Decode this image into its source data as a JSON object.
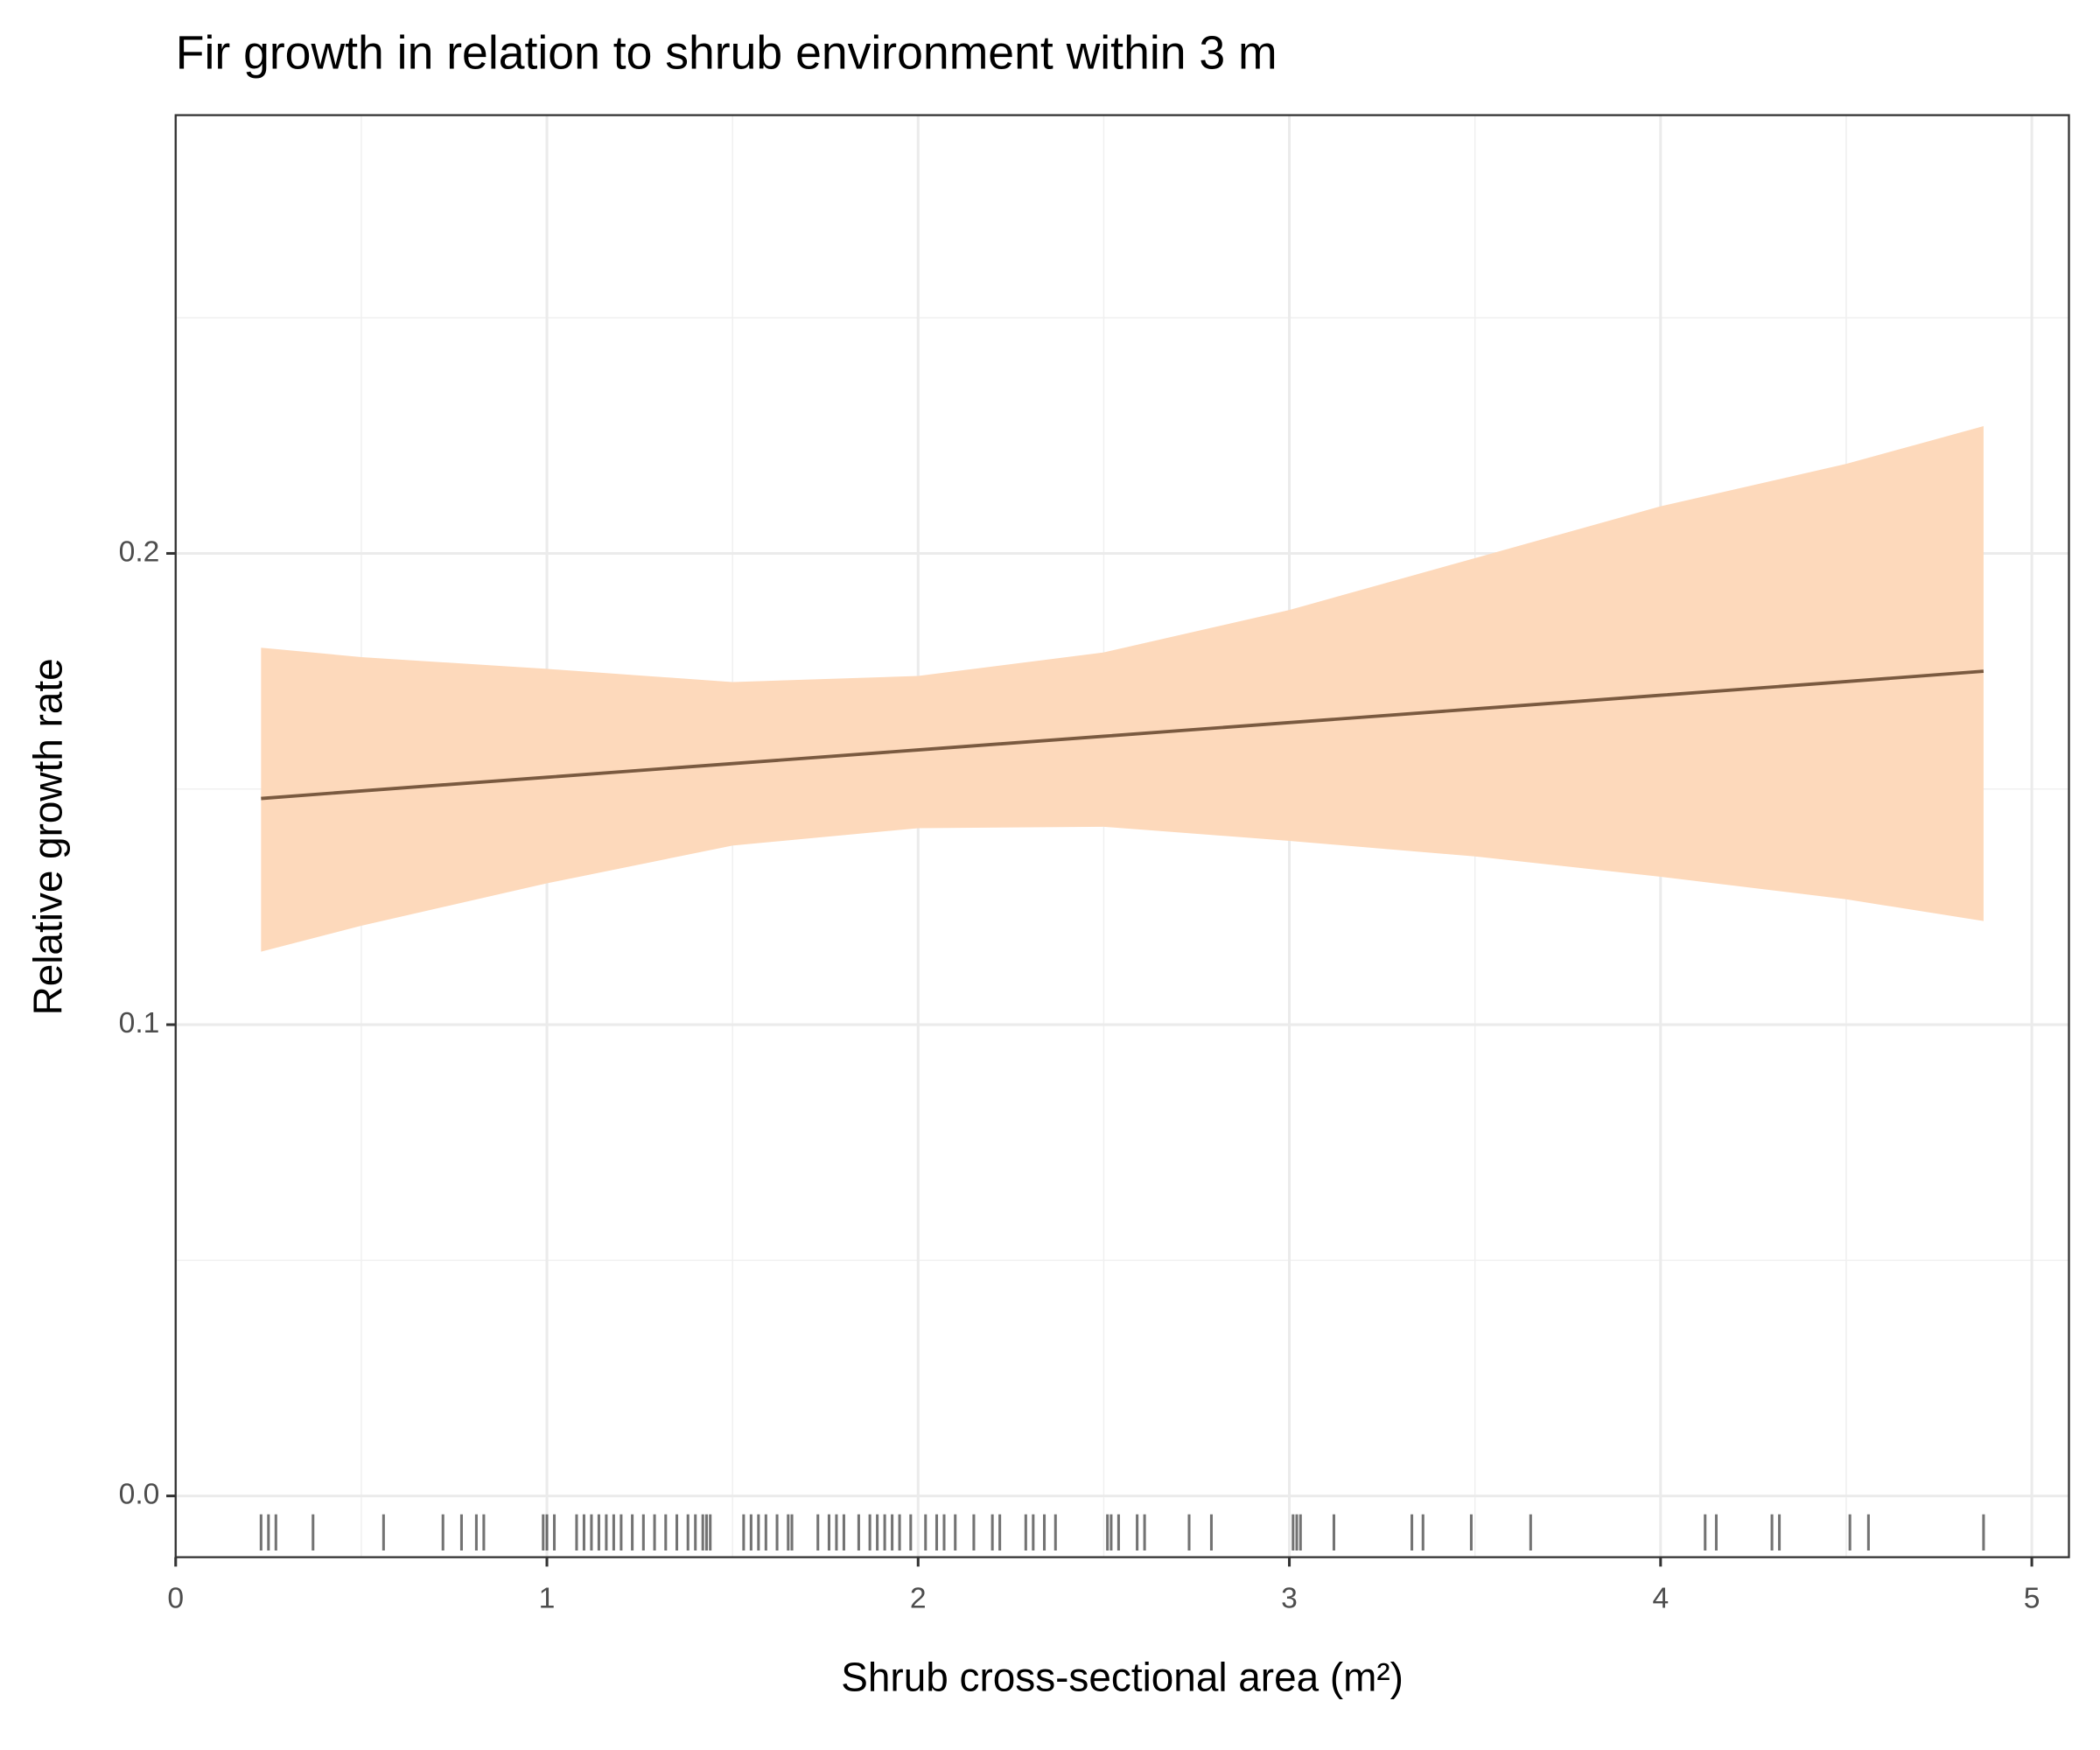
{
  "chart_data": {
    "type": "line",
    "title": "Fir growth in relation to shrub environment within 3 m",
    "xlabel": "Shrub cross-sectional area (m²)",
    "ylabel": "Relative growth rate",
    "x": [
      0.23,
      0.5,
      1,
      1.5,
      2,
      2.5,
      3,
      3.5,
      4,
      4.5,
      4.87
    ],
    "values": [
      0.148,
      0.1496,
      0.1525,
      0.1554,
      0.1583,
      0.1612,
      0.1641,
      0.167,
      0.1699,
      0.1728,
      0.175
    ],
    "upper": [
      0.18,
      0.178,
      0.1755,
      0.1727,
      0.174,
      0.179,
      0.188,
      0.199,
      0.21,
      0.219,
      0.227
    ],
    "lower": [
      0.1155,
      0.121,
      0.13,
      0.138,
      0.1417,
      0.142,
      0.139,
      0.1357,
      0.1314,
      0.1266,
      0.122
    ],
    "line_color": "#7a5a40",
    "ribbon_color": "#fdd9bb",
    "rug": [
      0.23,
      0.25,
      0.27,
      0.37,
      0.56,
      0.72,
      0.77,
      0.81,
      0.83,
      0.99,
      1.0,
      1.02,
      1.08,
      1.1,
      1.12,
      1.14,
      1.16,
      1.18,
      1.2,
      1.23,
      1.26,
      1.29,
      1.32,
      1.35,
      1.38,
      1.4,
      1.42,
      1.43,
      1.44,
      1.53,
      1.55,
      1.57,
      1.59,
      1.62,
      1.65,
      1.66,
      1.73,
      1.76,
      1.78,
      1.8,
      1.84,
      1.87,
      1.89,
      1.91,
      1.93,
      1.95,
      1.98,
      2.02,
      2.05,
      2.07,
      2.1,
      2.15,
      2.2,
      2.22,
      2.29,
      2.31,
      2.34,
      2.37,
      2.51,
      2.52,
      2.54,
      2.59,
      2.61,
      2.73,
      2.79,
      3.01,
      3.02,
      3.03,
      3.12,
      3.33,
      3.36,
      3.49,
      3.65,
      4.12,
      4.15,
      4.3,
      4.32,
      4.51,
      4.56,
      4.87
    ],
    "rug_color": "#000000",
    "xlim": [
      0,
      5.1
    ],
    "ylim": [
      -0.013,
      0.293
    ],
    "xticks": [
      0,
      1,
      2,
      3,
      4,
      5
    ],
    "yticks": [
      {
        "value": 0,
        "label": "0.0"
      },
      0.1,
      0.2
    ],
    "xminorticks": [
      0.5,
      1.5,
      2.5,
      3.5,
      4.5
    ],
    "yminorticks": [
      0.05,
      0.15,
      0.25
    ],
    "grid": true
  }
}
